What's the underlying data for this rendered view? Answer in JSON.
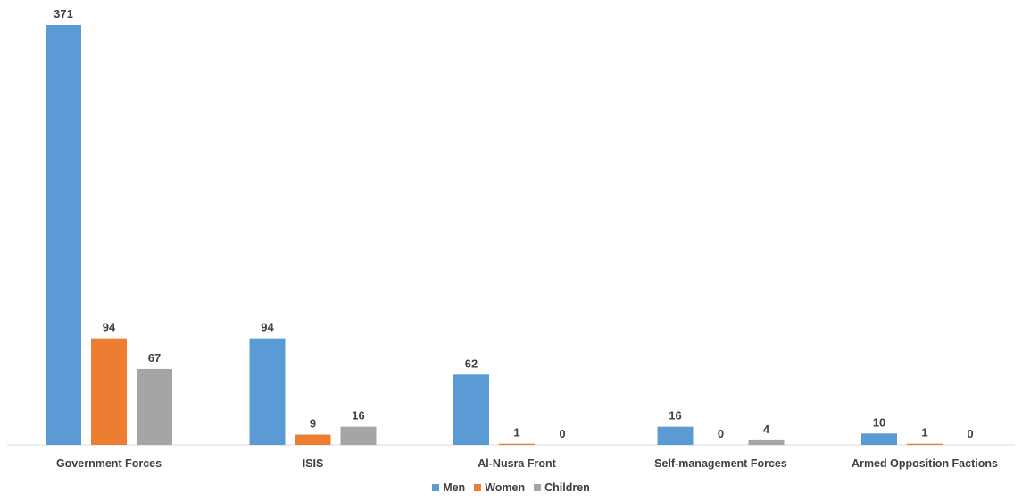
{
  "chart_data": {
    "type": "bar",
    "categories": [
      "Government Forces",
      "ISIS",
      "Al-Nusra Front",
      "Self-management Forces",
      "Armed Opposition Factions"
    ],
    "series": [
      {
        "name": "Men",
        "values": [
          371,
          94,
          62,
          16,
          10
        ],
        "color": "#5B9BD5"
      },
      {
        "name": "Women",
        "values": [
          94,
          9,
          1,
          0,
          1
        ],
        "color": "#ED7D31"
      },
      {
        "name": "Children",
        "values": [
          67,
          16,
          0,
          4,
          0
        ],
        "color": "#A5A5A5"
      }
    ],
    "ylim": [
      0,
      371
    ],
    "grid": false,
    "data_labels": true,
    "legend_position": "bottom"
  }
}
